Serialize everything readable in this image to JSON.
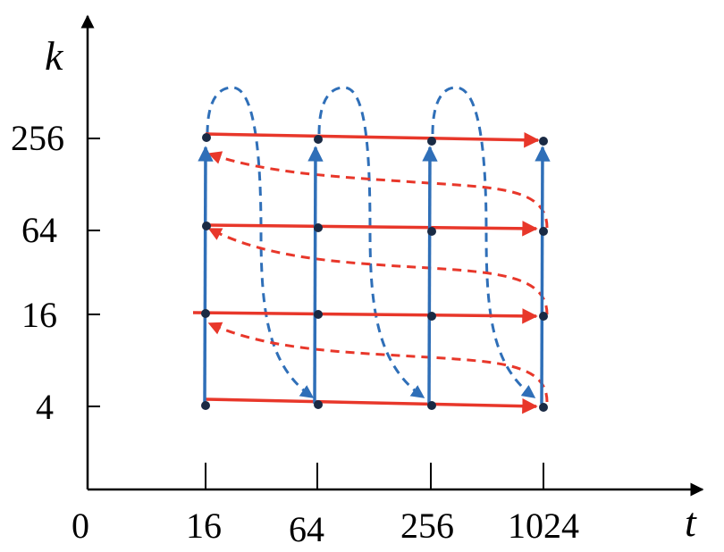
{
  "axes": {
    "x_name": "t",
    "y_name": "k",
    "origin_label": "0",
    "x_ticks": [
      "16",
      "64",
      "256",
      "1024"
    ],
    "y_ticks": [
      "256",
      "64",
      "16",
      "4"
    ]
  },
  "colors": {
    "axis": "#000000",
    "red_path": "#e8372a",
    "blue_path": "#2f6fb8",
    "node": "#1a2a44"
  }
}
